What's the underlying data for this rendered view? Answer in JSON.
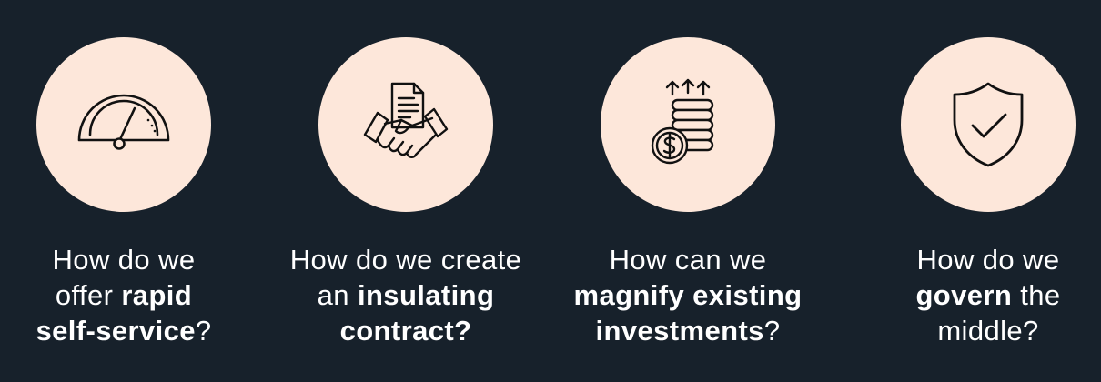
{
  "cards": [
    {
      "icon": "speedometer-icon",
      "caption": {
        "l1": "How do we",
        "l2a": "offer ",
        "l2b": "rapid",
        "l2c": "",
        "l3a": "",
        "l3b": "self-service",
        "l3c": "?"
      }
    },
    {
      "icon": "handshake-contract-icon",
      "caption": {
        "l1": "How do we create",
        "l2a": "an ",
        "l2b": "insulating",
        "l2c": "",
        "l3a": "",
        "l3b": "contract?",
        "l3c": ""
      }
    },
    {
      "icon": "coin-stack-growth-icon",
      "caption": {
        "l1": "How can we",
        "l2a": "",
        "l2b": "magnify existing",
        "l2c": "",
        "l3a": "",
        "l3b": "investments",
        "l3c": "?"
      }
    },
    {
      "icon": "shield-check-icon",
      "caption": {
        "l1": "How do we",
        "l2a": "",
        "l2b": "govern",
        "l2c": " the",
        "l3a": "middle?",
        "l3b": "",
        "l3c": ""
      }
    }
  ],
  "colors": {
    "background": "#17212b",
    "circle": "#fde7da",
    "text": "#ffffff",
    "icon_stroke": "#111111"
  }
}
